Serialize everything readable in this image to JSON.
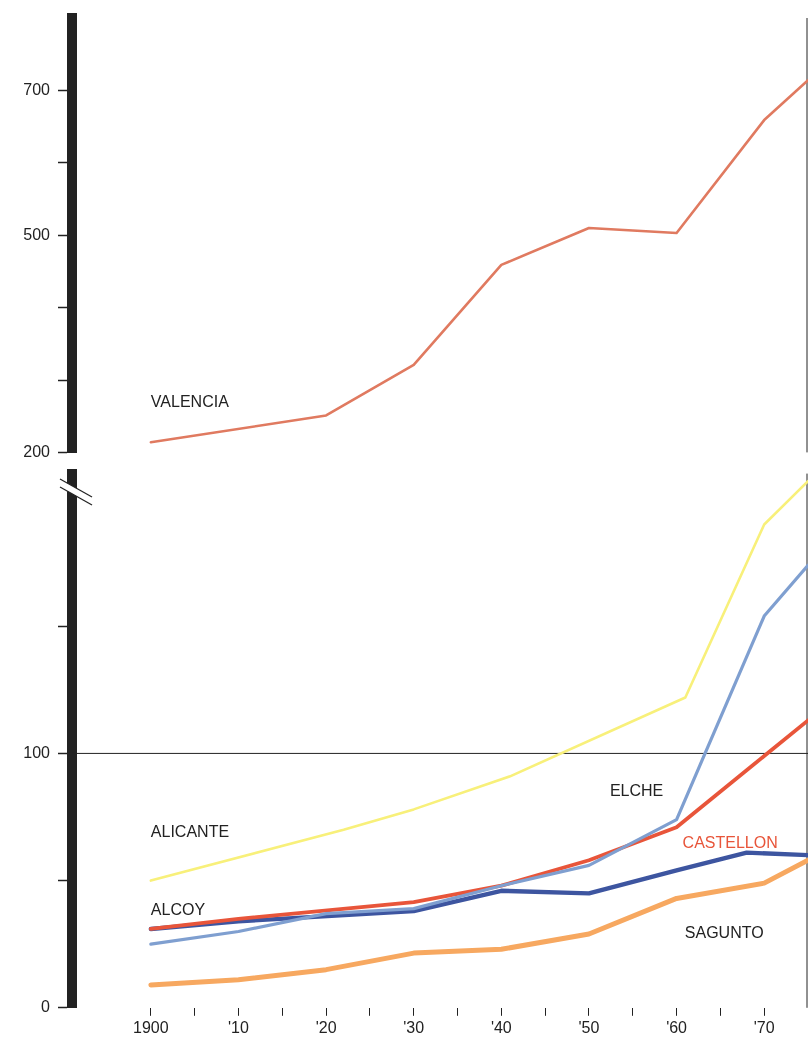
{
  "chart_data": [
    {
      "type": "line",
      "xlim": [
        1891,
        1975
      ],
      "ylim": [
        200,
        800
      ],
      "yticks": [
        200,
        {
          "value": 300,
          "label": null
        },
        {
          "value": 400,
          "label": null
        },
        500,
        {
          "value": 600,
          "label": null
        },
        700
      ],
      "tick_labels": "y",
      "grid": false,
      "legend": false,
      "marker": "none",
      "line_style": "solid",
      "series": [
        {
          "name": "VALENCIA",
          "color": "#e07a60",
          "x": [
            1900,
            1920,
            1930,
            1940,
            1950,
            1960,
            1970,
            1975
          ],
          "values": [
            214,
            251,
            321,
            459,
            510,
            503,
            659,
            714
          ]
        }
      ]
    },
    {
      "type": "line",
      "xlim": [
        1891,
        1975
      ],
      "xticks": [
        {
          "value": 1900,
          "label": "1900"
        },
        {
          "value": 1905,
          "label": null
        },
        {
          "value": 1910,
          "label": "'10"
        },
        {
          "value": 1915,
          "label": null
        },
        {
          "value": 1920,
          "label": "'20"
        },
        {
          "value": 1925,
          "label": null
        },
        {
          "value": 1930,
          "label": "'30"
        },
        {
          "value": 1935,
          "label": null
        },
        {
          "value": 1940,
          "label": "'40"
        },
        {
          "value": 1945,
          "label": null
        },
        {
          "value": 1950,
          "label": "'50"
        },
        {
          "value": 1955,
          "label": null
        },
        {
          "value": 1960,
          "label": "'60"
        },
        {
          "value": 1965,
          "label": null
        },
        {
          "value": 1970,
          "label": "'70"
        }
      ],
      "ylim": [
        0,
        210
      ],
      "yticks": [
        0,
        {
          "value": 50,
          "label": null
        },
        100,
        {
          "value": 150,
          "label": null
        }
      ],
      "grid": false,
      "legend": false,
      "marker": "none",
      "line_style": "solid",
      "ref_lines": [
        {
          "axis": "y",
          "value": 100,
          "label": null,
          "color": "#222222"
        }
      ],
      "series": [
        {
          "name": "ALICANTE",
          "color": "#f8f07a",
          "x": [
            1900,
            1922,
            1930,
            1941,
            1961,
            1970,
            1975
          ],
          "values": [
            50,
            70,
            78,
            91,
            122,
            190,
            207
          ]
        },
        {
          "name": "ELCHE",
          "color": "#7f9fd0",
          "x": [
            1900,
            1910,
            1920,
            1930,
            1940,
            1950,
            1960,
            1970,
            1975
          ],
          "values": [
            25,
            30,
            37,
            39,
            48,
            56,
            74,
            154,
            174
          ]
        },
        {
          "name": "CASTELLON",
          "color": "#e8553a",
          "x": [
            1900,
            1910,
            1930,
            1940,
            1950,
            1960,
            1975
          ],
          "values": [
            31,
            35,
            41.5,
            48,
            58,
            71,
            113
          ]
        },
        {
          "name": "ALCOY",
          "color": "#3d55a0",
          "x": [
            1900,
            1910,
            1930,
            1940,
            1950,
            1960,
            1968,
            1975
          ],
          "values": [
            31,
            34,
            38,
            46,
            45,
            54,
            61,
            60
          ]
        },
        {
          "name": "SAGUNTO",
          "color": "#f7a860",
          "x": [
            1900,
            1910,
            1920,
            1930,
            1940,
            1950,
            1960,
            1970,
            1975
          ],
          "values": [
            9,
            11,
            15,
            21.5,
            23,
            29,
            43,
            49,
            58
          ]
        }
      ]
    }
  ]
}
